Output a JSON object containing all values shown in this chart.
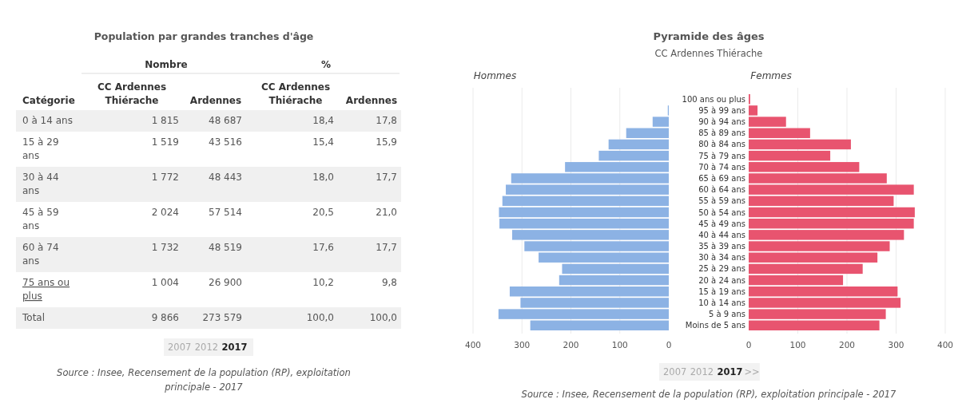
{
  "chart_data": [
    {
      "type": "other",
      "title": "Population par grandes tranches d'âge",
      "annotations": [
        "Nombre",
        "%",
        "Catégorie",
        "CC Ardennes Thiérache",
        "Ardennes",
        "CC Ardennes Thiérache",
        "Ardennes",
        "0 à 14 ans",
        "1 815",
        "48 687",
        "18,4",
        "17,8",
        "15 à 29 ans",
        "1 519",
        "43 516",
        "15,4",
        "15,9",
        "30 à 44 ans",
        "1 772",
        "48 443",
        "18,0",
        "17,7",
        "45 à 59 ans",
        "2 024",
        "57 514",
        "20,5",
        "21,0",
        "60 à 74 ans",
        "1 732",
        "48 519",
        "17,6",
        "17,7",
        "75 ans ou plus",
        "1 004",
        "26 900",
        "10,2",
        "9,8",
        "Total",
        "9 866",
        "273 579",
        "100,0",
        "100,0",
        "2007",
        "2012",
        "2017",
        "Source : Insee, Recensement de la population (RP), exploitation principale - 2017"
      ]
    },
    {
      "type": "bar",
      "orientation": "horizontal",
      "title": "Pyramide des âges",
      "subtitle": "CC Ardennes Thiérache",
      "tick_labels": "x",
      "grid": "x",
      "categories": [
        null,
        null,
        null,
        null,
        null,
        null,
        null,
        null,
        null,
        null,
        null,
        null,
        null,
        null,
        null,
        null,
        null,
        null,
        null,
        null,
        null
      ],
      "xlim": [
        400,
        0
      ],
      "xticks": [
        400,
        300,
        200,
        100,
        0
      ],
      "series": [
        {
          "name": "Hommes",
          "color": "#8cb2e4",
          "values": [
            0,
            2,
            33,
            87,
            123,
            143,
            212,
            322,
            333,
            340,
            347,
            346,
            320,
            295,
            266,
            218,
            224,
            325,
            303,
            348,
            283
          ]
        }
      ],
      "annotations": [
        "2007",
        "2012",
        "2017",
        ">>",
        "Source : Insee, Recensement de la population (RP), exploitation principale - 2017"
      ]
    },
    {
      "type": "bar",
      "orientation": "horizontal",
      "grid": "x",
      "categories": [
        "100 ans ou plus",
        "95 à 99 ans",
        "90 à 94 ans",
        "85 à 89 ans",
        "80 à 84 ans",
        "75 à 79 ans",
        "70 à 74 ans",
        "65 à 69 ans",
        "60 à 64 ans",
        "55 à 59 ans",
        "50 à 54 ans",
        "45 à 49 ans",
        "40 à 44 ans",
        "35 à 39 ans",
        "30 à 34 ans",
        "25 à 29 ans",
        "20 à 24 ans",
        "15 à 19 ans",
        "10 à 14 ans",
        "5 à 9 ans",
        "Moins de 5 ans"
      ],
      "xlim": [
        0,
        400
      ],
      "xticks": [
        0,
        100,
        200,
        300,
        400
      ],
      "series": [
        {
          "name": "Femmes",
          "color": "#e8546f",
          "values": [
            3,
            18,
            76,
            125,
            208,
            166,
            225,
            281,
            336,
            295,
            338,
            336,
            316,
            287,
            262,
            232,
            192,
            303,
            309,
            279,
            266
          ]
        }
      ]
    }
  ]
}
